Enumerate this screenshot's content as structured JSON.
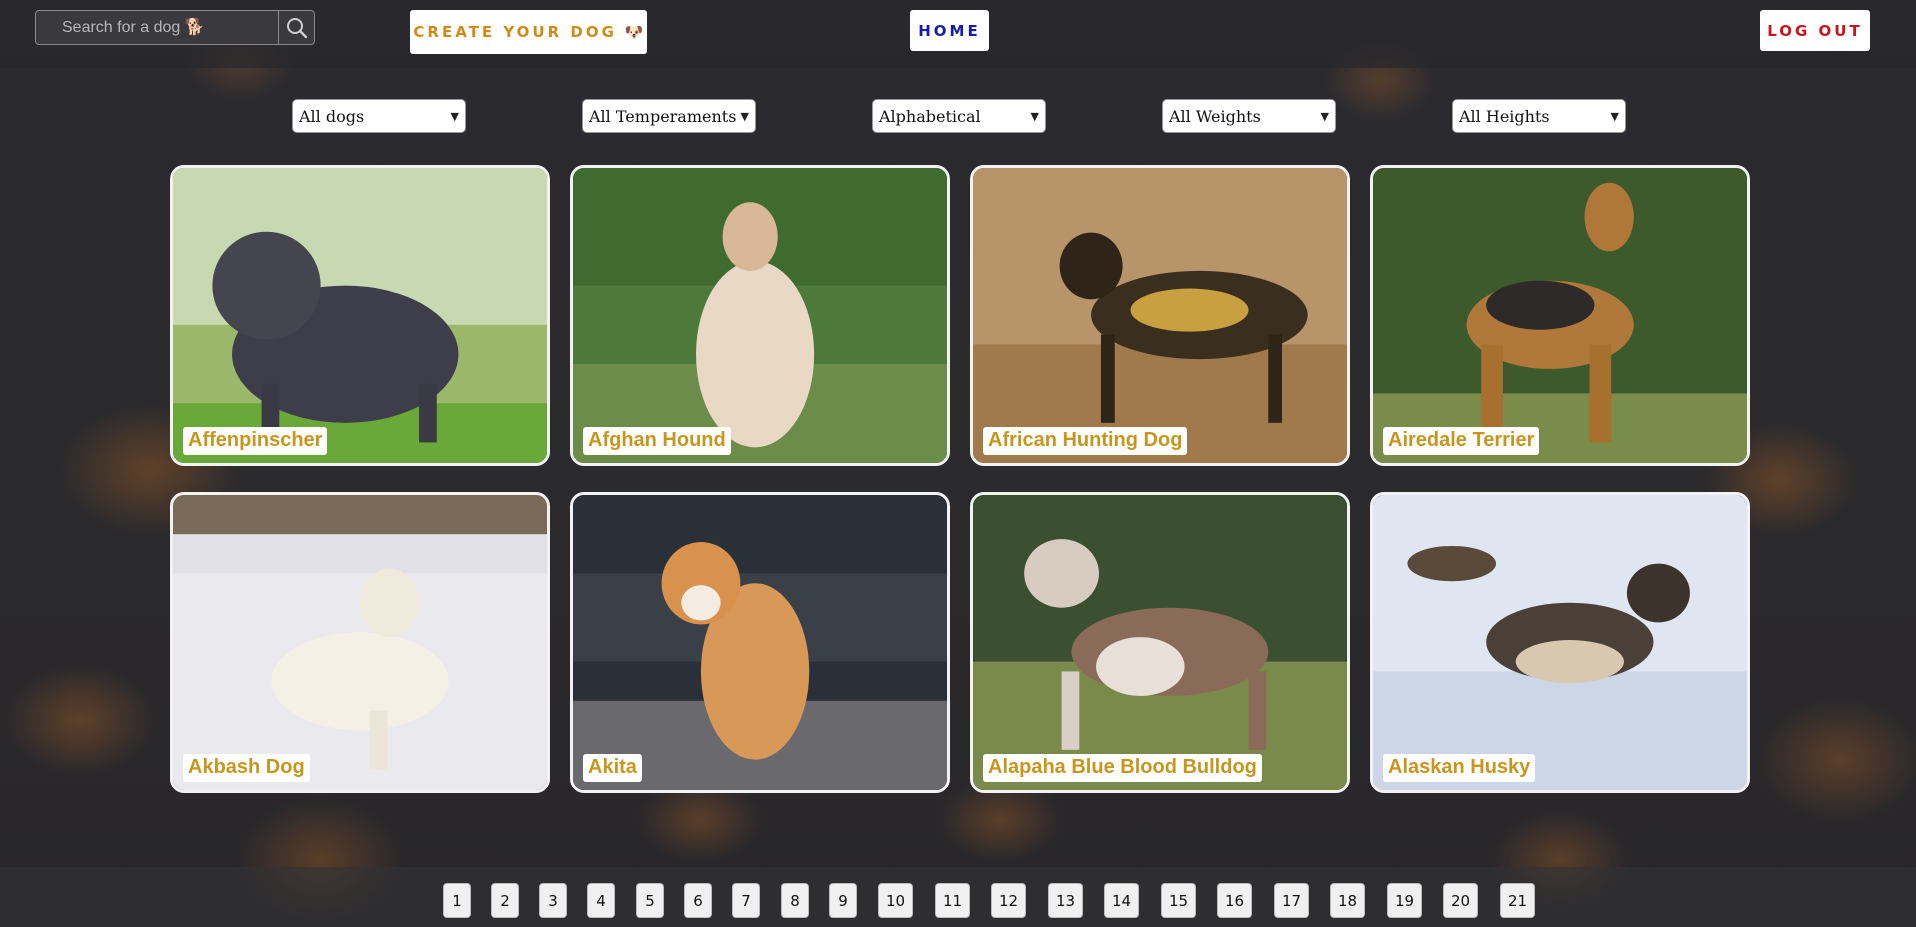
{
  "header": {
    "search_placeholder": "Search for a dog 🐕",
    "create_label": "CREATE YOUR DOG",
    "create_emoji": "🐶",
    "home_label": "HOME",
    "logout_label": "LOG OUT"
  },
  "filters": [
    {
      "selected": "All dogs"
    },
    {
      "selected": "All Temperaments"
    },
    {
      "selected": "Alphabetical"
    },
    {
      "selected": "All Weights"
    },
    {
      "selected": "All Heights"
    }
  ],
  "dogs": [
    {
      "name": "Affenpinscher"
    },
    {
      "name": "Afghan Hound"
    },
    {
      "name": "African Hunting Dog"
    },
    {
      "name": "Airedale Terrier"
    },
    {
      "name": "Akbash Dog"
    },
    {
      "name": "Akita"
    },
    {
      "name": "Alapaha Blue Blood Bulldog"
    },
    {
      "name": "Alaskan Husky"
    }
  ],
  "pagination": {
    "pages": [
      "1",
      "2",
      "3",
      "4",
      "5",
      "6",
      "7",
      "8",
      "9",
      "10",
      "11",
      "12",
      "13",
      "14",
      "15",
      "16",
      "17",
      "18",
      "19",
      "20",
      "21"
    ]
  },
  "colors": {
    "name_text": "#c8961e",
    "create_text": "#d08a18",
    "home_text": "#1a1aa8",
    "logout_text": "#c8141c"
  }
}
